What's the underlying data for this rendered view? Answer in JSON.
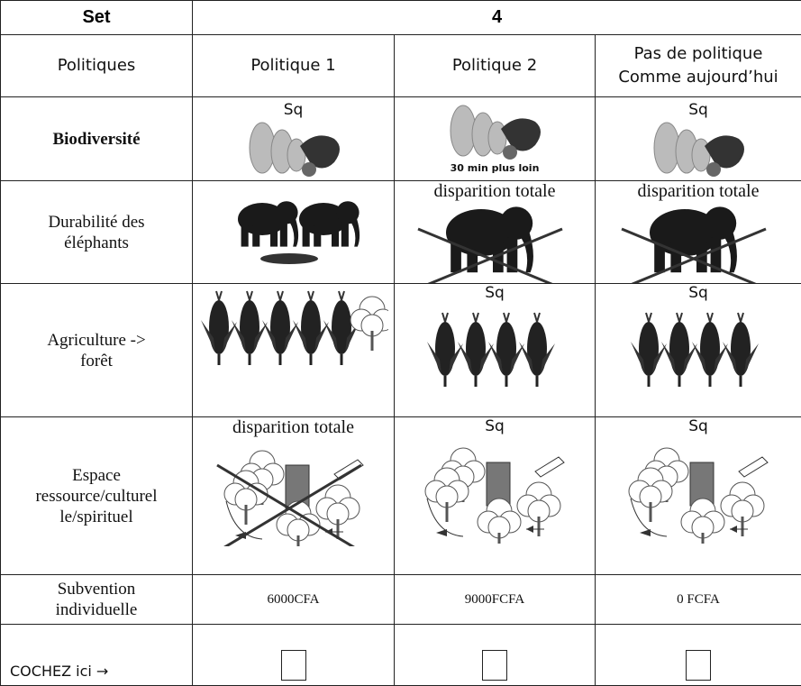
{
  "header": {
    "set_label": "Set",
    "set_value": "4"
  },
  "table": {
    "columns": [
      "Politiques",
      "Politique 1",
      "Politique 2",
      "Pas de politique\nComme aujourd’hui"
    ],
    "rows": [
      {
        "label": "Biodiversité",
        "cells": [
          "Sq",
          "30 min plus loin",
          "Sq"
        ]
      },
      {
        "label": "Durabilité des\néléphants",
        "cells": [
          null,
          "disparition totale",
          "disparition totale"
        ]
      },
      {
        "label": "Agriculture ->\nforêt",
        "cells": [
          null,
          "Sq",
          "Sq"
        ]
      },
      {
        "label": "Espace\nressource/culturel\nle/spirituel",
        "cells": [
          "disparition totale",
          "Sq",
          "Sq"
        ]
      },
      {
        "label": "Subvention\nindividuelle",
        "cells": [
          "6000CFA",
          "9000FCFA",
          "0 FCFA"
        ]
      }
    ],
    "check_label": "COCHEZ ici →"
  }
}
